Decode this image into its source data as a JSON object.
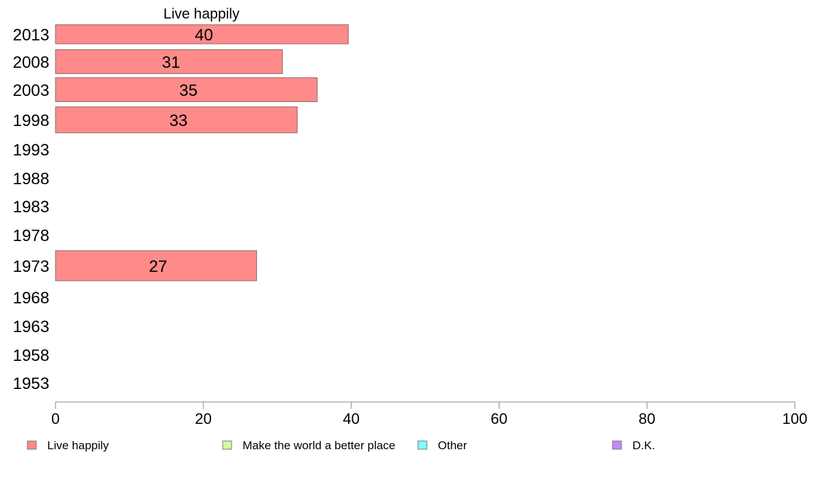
{
  "chart_data": {
    "type": "bar",
    "orientation": "horizontal",
    "title": "Live happily",
    "categories": [
      "2013",
      "2008",
      "2003",
      "1998",
      "1993",
      "1988",
      "1983",
      "1978",
      "1973",
      "1968",
      "1963",
      "1958",
      "1953"
    ],
    "series": [
      {
        "name": "Live happily",
        "color": "#ff8a8a",
        "values": [
          40,
          31,
          35,
          33,
          null,
          null,
          null,
          null,
          27,
          null,
          null,
          null,
          null
        ],
        "bar_values": [
          39.6,
          30.7,
          35.4,
          32.7,
          null,
          null,
          null,
          null,
          27.2,
          null,
          null,
          null,
          null
        ]
      }
    ],
    "xlim": [
      0,
      100
    ],
    "xticks": [
      0,
      20,
      40,
      60,
      80,
      100
    ],
    "grid": false,
    "legend_position": "bottom",
    "legend": [
      {
        "label": "Live happily",
        "color": "#ff8a8a"
      },
      {
        "label": "Make the world a better place",
        "color": "#ccff99"
      },
      {
        "label": "Other",
        "color": "#80ffff"
      },
      {
        "label": "D.K.",
        "color": "#bf8cff"
      }
    ]
  }
}
